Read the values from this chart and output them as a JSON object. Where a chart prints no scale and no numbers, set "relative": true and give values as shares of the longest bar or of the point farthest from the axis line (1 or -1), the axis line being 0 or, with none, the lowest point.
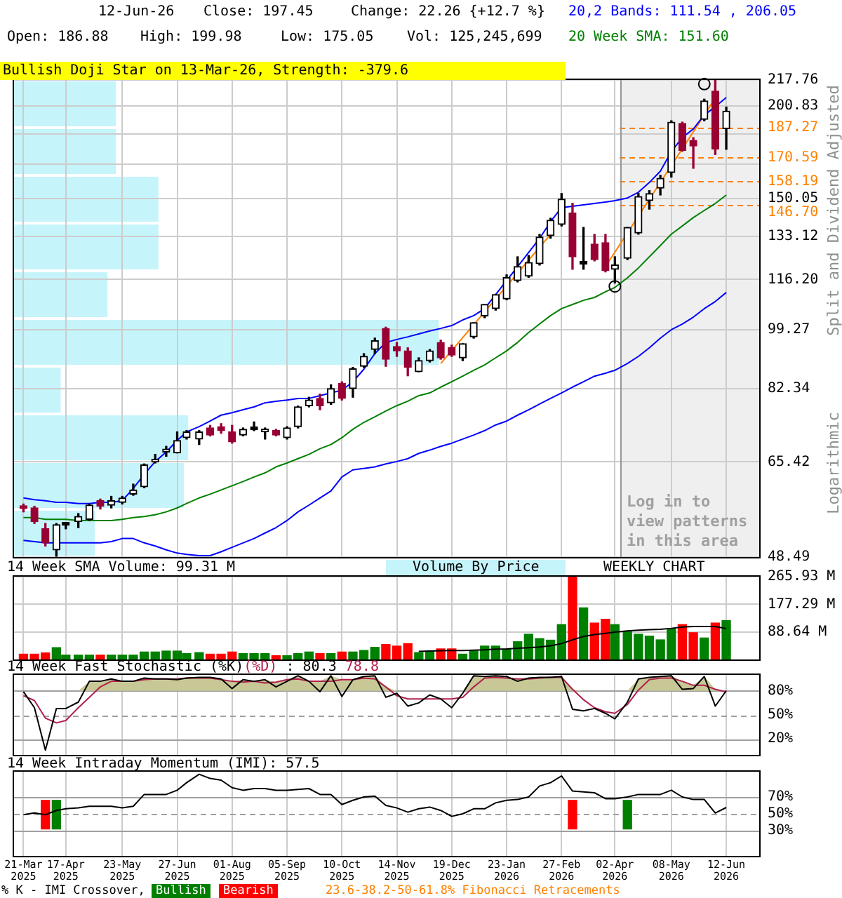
{
  "chart_data": [
    {
      "type": "candlestick",
      "annotations": [
        "12-Jun-26",
        "Close: 197.45",
        "Change: 22.26 {+12.7 %}",
        "Open: 186.88",
        "High: 199.98",
        "Low: 175.05",
        "Vol: 125,245,699",
        "Bullish Doji Star on 13-Mar-26, Strength: -379.6",
        "Logarithmic",
        "23.6-38.2-50-61.8% Fibonacci Retracements"
      ],
      "ylabel": "Split and Dividend Adjusted",
      "legend": "top right",
      "grid": true,
      "tick_labels": "y",
      "log": true,
      "x": [
        "2025-03-21",
        "2025-03-28",
        "2025-04-04",
        "2025-04-11",
        "2025-04-17",
        "2025-04-25",
        "2025-05-02",
        "2025-05-09",
        "2025-05-16",
        "2025-05-23",
        "2025-05-30",
        "2025-06-06",
        "2025-06-13",
        "2025-06-20",
        "2025-06-27",
        "2025-07-03",
        "2025-07-11",
        "2025-07-18",
        "2025-07-25",
        "2025-08-01",
        "2025-08-08",
        "2025-08-15",
        "2025-08-22",
        "2025-08-29",
        "2025-09-05",
        "2025-09-12",
        "2025-09-19",
        "2025-09-26",
        "2025-10-03",
        "2025-10-10",
        "2025-10-17",
        "2025-10-24",
        "2025-10-31",
        "2025-11-07",
        "2025-11-14",
        "2025-11-21",
        "2025-11-28",
        "2025-12-05",
        "2025-12-12",
        "2025-12-19",
        "2025-12-26",
        "2026-01-02",
        "2026-01-09",
        "2026-01-16",
        "2026-01-23",
        "2026-01-30",
        "2026-02-06",
        "2026-02-13",
        "2026-02-20",
        "2026-02-27",
        "2026-03-06",
        "2026-03-13",
        "2026-03-20",
        "2026-03-27",
        "2026-04-02",
        "2026-04-10",
        "2026-04-17",
        "2026-04-24",
        "2026-05-01",
        "2026-05-08",
        "2026-05-15",
        "2026-05-22",
        "2026-05-29",
        "2026-06-05",
        "2026-06-12"
      ],
      "ohlc": [
        [
          56.6,
          57.3,
          55.9,
          56.5
        ],
        [
          56.6,
          56.9,
          53.9,
          54.2
        ],
        [
          53.0,
          53.9,
          50.2,
          50.7
        ],
        [
          49.6,
          53.9,
          48.6,
          53.7
        ],
        [
          53.7,
          53.9,
          53.0,
          53.6
        ],
        [
          54.2,
          55.6,
          53.2,
          55.1
        ],
        [
          54.6,
          57.3,
          54.4,
          57.1
        ],
        [
          57.9,
          58.2,
          56.4,
          56.9
        ],
        [
          57.1,
          58.7,
          56.6,
          57.9
        ],
        [
          57.6,
          58.7,
          57.3,
          58.4
        ],
        [
          59.1,
          61.0,
          58.9,
          59.9
        ],
        [
          60.5,
          65.0,
          60.3,
          64.8
        ],
        [
          65.4,
          67.0,
          65.2,
          65.5
        ],
        [
          67.5,
          68.7,
          66.6,
          67.6
        ],
        [
          67.3,
          71.9,
          67.3,
          70.0
        ],
        [
          70.6,
          72.2,
          70.3,
          71.9
        ],
        [
          70.3,
          72.2,
          69.1,
          71.9
        ],
        [
          72.8,
          73.4,
          71.0,
          71.2
        ],
        [
          73.1,
          73.8,
          71.6,
          72.2
        ],
        [
          71.9,
          73.4,
          69.4,
          69.7
        ],
        [
          71.2,
          72.8,
          71.0,
          72.5
        ],
        [
          72.5,
          74.2,
          72.2,
          72.4
        ],
        [
          71.9,
          72.8,
          70.3,
          72.5
        ],
        [
          72.2,
          72.5,
          71.0,
          71.2
        ],
        [
          70.6,
          73.1,
          70.3,
          72.8
        ],
        [
          73.1,
          78.0,
          72.8,
          77.8
        ],
        [
          78.1,
          80.2,
          77.8,
          79.5
        ],
        [
          79.9,
          81.0,
          77.1,
          78.1
        ],
        [
          78.8,
          83.4,
          78.4,
          82.4
        ],
        [
          83.8,
          84.2,
          79.5,
          79.9
        ],
        [
          82.4,
          88.1,
          80.2,
          87.7
        ],
        [
          88.4,
          92.0,
          88.1,
          91.2
        ],
        [
          93.2,
          96.6,
          92.0,
          95.8
        ],
        [
          99.6,
          100.0,
          88.4,
          90.4
        ],
        [
          94.1,
          95.3,
          91.2,
          92.8
        ],
        [
          92.8,
          93.7,
          85.8,
          88.1
        ],
        [
          86.9,
          90.8,
          86.9,
          90.0
        ],
        [
          90.0,
          93.2,
          89.6,
          92.8
        ],
        [
          95.3,
          96.0,
          90.4,
          90.8
        ],
        [
          93.7,
          94.5,
          91.2,
          91.6
        ],
        [
          90.8,
          94.9,
          90.0,
          94.9
        ],
        [
          97.0,
          101.4,
          96.6,
          101.4
        ],
        [
          103.6,
          107.4,
          103.0,
          107.4
        ],
        [
          106.0,
          110.8,
          105.5,
          110.8
        ],
        [
          109.3,
          117.9,
          109.0,
          116.9
        ],
        [
          115.8,
          124.8,
          115.3,
          121.0
        ],
        [
          117.4,
          125.3,
          117.0,
          122.6
        ],
        [
          122.1,
          133.9,
          121.6,
          132.8
        ],
        [
          133.4,
          140.9,
          132.3,
          140.0
        ],
        [
          138.2,
          152.3,
          137.5,
          149.6
        ],
        [
          143.2,
          147.7,
          120.0,
          124.8
        ],
        [
          122.1,
          136.9,
          120.0,
          122.0
        ],
        [
          129.9,
          133.9,
          123.2,
          123.7
        ],
        [
          130.5,
          133.9,
          119.0,
          119.5
        ],
        [
          120.0,
          124.8,
          114.9,
          121.6
        ],
        [
          124.2,
          136.9,
          123.7,
          136.9
        ],
        [
          134.5,
          152.3,
          134.0,
          150.9
        ],
        [
          149.0,
          153.7,
          145.0,
          152.3
        ],
        [
          154.9,
          161.3,
          151.6,
          159.8
        ],
        [
          162.7,
          191.5,
          160.4,
          190.7
        ],
        [
          189.9,
          190.7,
          174.0,
          174.5
        ],
        [
          180.0,
          181.6,
          164.9,
          176.9
        ],
        [
          192.4,
          205.0,
          191.5,
          203.8
        ],
        [
          210.2,
          217.76,
          172.2,
          175.19
        ],
        [
          186.88,
          199.98,
          175.05,
          197.45
        ]
      ],
      "colors": [
        "#990033",
        "#990033",
        "#990033",
        "#000000",
        "#000000",
        "#000000",
        "#000000",
        "#990033",
        "#000000",
        "#000000",
        "#000000",
        "#000000",
        "#000000",
        "#000000",
        "#000000",
        "#000000",
        "#000000",
        "#990033",
        "#990033",
        "#990033",
        "#000000",
        "#000000",
        "#000000",
        "#990033",
        "#000000",
        "#000000",
        "#000000",
        "#990033",
        "#000000",
        "#990033",
        "#000000",
        "#000000",
        "#000000",
        "#990033",
        "#990033",
        "#990033",
        "#000000",
        "#000000",
        "#990033",
        "#990033",
        "#000000",
        "#000000",
        "#000000",
        "#000000",
        "#000000",
        "#000000",
        "#000000",
        "#000000",
        "#000000",
        "#000000",
        "#990033",
        "#000000",
        "#990033",
        "#990033",
        "#000000",
        "#000000",
        "#000000",
        "#000000",
        "#000000",
        "#000000",
        "#990033",
        "#990033",
        "#000000",
        "#990033",
        "#000000"
      ],
      "series": [
        {
          "name": "20,2 Bands: 111.54 , 206.05",
          "type": "line",
          "color": "#0000ff",
          "values": [
            58.4,
            58.1,
            57.9,
            57.6,
            57.6,
            57.4,
            57.4,
            57.6,
            57.6,
            57.9,
            60.2,
            62.9,
            65.5,
            67.5,
            70.0,
            71.9,
            73.1,
            74.4,
            75.8,
            76.4,
            77.1,
            77.8,
            78.8,
            79.2,
            79.5,
            79.9,
            79.9,
            80.6,
            81.3,
            82.0,
            84.2,
            87.6,
            92.0,
            95.3,
            96.2,
            97.0,
            97.9,
            98.8,
            99.6,
            100.5,
            102.3,
            103.7,
            106.0,
            110.8,
            115.8,
            121.0,
            126.5,
            132.2,
            139.4,
            145.7,
            146.3,
            147.0,
            147.6,
            148.3,
            148.9,
            150.2,
            152.9,
            157.7,
            163.4,
            173.8,
            181.7,
            186.6,
            195.0,
            200.2,
            206.05
          ]
        },
        {
          "type": "line",
          "color": "#0000ff",
          "values": [
            51.1,
            50.9,
            50.7,
            50.7,
            50.7,
            50.7,
            50.7,
            50.7,
            50.9,
            51.4,
            51.4,
            50.7,
            50.2,
            49.6,
            49.1,
            48.9,
            48.7,
            48.7,
            49.3,
            50.0,
            50.7,
            51.4,
            52.3,
            53.2,
            54.4,
            55.9,
            57.1,
            58.4,
            59.7,
            62.4,
            63.8,
            64.1,
            64.4,
            65.0,
            65.5,
            66.1,
            67.2,
            67.9,
            68.7,
            69.4,
            70.3,
            71.2,
            72.2,
            73.5,
            74.4,
            75.8,
            77.1,
            78.5,
            79.9,
            81.3,
            82.8,
            84.2,
            85.7,
            86.5,
            87.3,
            89.2,
            91.2,
            93.7,
            96.6,
            99.2,
            101.0,
            103.2,
            106.0,
            108.4,
            111.54
          ]
        },
        {
          "name": "20 Week SMA: 151.60",
          "type": "line",
          "color": "#008000",
          "values": [
            54.9,
            54.9,
            54.6,
            54.6,
            54.6,
            54.4,
            54.4,
            54.4,
            54.4,
            54.6,
            54.9,
            55.1,
            55.4,
            55.9,
            56.6,
            57.4,
            58.4,
            59.1,
            59.9,
            60.7,
            61.5,
            62.4,
            63.2,
            64.4,
            65.2,
            66.1,
            67.0,
            68.2,
            69.1,
            70.6,
            72.5,
            74.1,
            75.4,
            76.8,
            78.1,
            79.2,
            80.6,
            81.3,
            82.8,
            84.2,
            85.7,
            87.3,
            88.8,
            90.8,
            92.8,
            95.3,
            98.3,
            101.0,
            103.7,
            106.0,
            107.4,
            108.8,
            109.8,
            111.8,
            113.3,
            116.8,
            120.5,
            124.8,
            129.3,
            134.0,
            137.5,
            141.2,
            144.4,
            147.6,
            151.6
          ]
        },
        {
          "type": "line",
          "color": "#ff8000",
          "x": [
            "2025-12-12",
            "2026-02-20",
            "2026-03-20",
            "2026-03-27",
            "2026-06-05"
          ],
          "values": [
            89.2,
            133.9,
            null,
            121.0,
            205.6
          ]
        },
        {
          "type": "scatter",
          "color": "#000000",
          "marker": "circle",
          "x": [
            "2026-04-02",
            "2026-05-29"
          ],
          "values": [
            113.7,
            215
          ]
        }
      ],
      "ref_lines": [
        {
          "axis": "y",
          "value": 187.27,
          "label": "187.27",
          "color": "#ff8000",
          "line_style": "dashed"
        },
        {
          "axis": "y",
          "value": 170.59,
          "label": "170.59",
          "color": "#ff8000",
          "line_style": "dashed"
        },
        {
          "axis": "y",
          "value": 158.19,
          "label": "158.19",
          "color": "#ff8000",
          "line_style": "dashed"
        },
        {
          "axis": "y",
          "value": 146.7,
          "label": "146.70",
          "color": "#ff8000",
          "line_style": "dashed"
        },
        {
          "axis": "x",
          "value": "2026-04-05",
          "color": "#999999"
        }
      ],
      "bands": [
        {
          "axis": "x",
          "from": "2026-04-05",
          "to": "2026-07-03",
          "label": "Log in to view patterns in this area",
          "color": "#efefef"
        }
      ],
      "xlim": [
        "2025-03-15",
        "2026-07-03"
      ],
      "xticks": [
        {
          "value": "2025-03-21",
          "label": null
        },
        {
          "value": "2025-04-17",
          "label": null
        },
        {
          "value": "2025-05-23",
          "label": null
        },
        {
          "value": "2025-06-27",
          "label": null
        },
        {
          "value": "2025-08-01",
          "label": null
        },
        {
          "value": "2025-09-05",
          "label": null
        },
        {
          "value": "2025-10-10",
          "label": null
        },
        {
          "value": "2025-11-14",
          "label": null
        },
        {
          "value": "2025-12-19",
          "label": null
        },
        {
          "value": "2026-01-23",
          "label": null
        },
        {
          "value": "2026-02-27",
          "label": null
        },
        {
          "value": "2026-04-02",
          "label": null
        },
        {
          "value": "2026-05-08",
          "label": null
        },
        {
          "value": "2026-06-12",
          "label": null
        }
      ],
      "ylim": [
        48.49,
        217.76
      ],
      "yticks": [
        48.49,
        65.42,
        82.34,
        99.27,
        {
          "value": 116.2,
          "label": "116.20"
        },
        133.12,
        150.05,
        {
          "value": 166.98,
          "label": null
        },
        {
          "value": 183.9,
          "label": null
        },
        200.83,
        217.76
      ]
    },
    {
      "type": "bar",
      "orientation": "horizontal",
      "relative": true,
      "legend": "bottom",
      "tick_labels": false,
      "categories": [
        null,
        null,
        null,
        null,
        null,
        null,
        null,
        null,
        null,
        null
      ],
      "series": [
        {
          "name": "Volume By Price",
          "color": "#c6f4fb",
          "values": [
            0.24,
            0.24,
            0.34,
            0.34,
            0.22,
            1,
            0.11,
            0.41,
            0.4,
            0.19
          ]
        }
      ]
    },
    {
      "type": "bar",
      "title": "14 Week SMA Volume: 99.31 M",
      "annotations": [
        "WEEKLY CHART"
      ],
      "grid": true,
      "tick_labels": "y",
      "x": [
        "2025-03-21",
        "2025-03-28",
        "2025-04-04",
        "2025-04-11",
        "2025-04-17",
        "2025-04-25",
        "2025-05-02",
        "2025-05-09",
        "2025-05-16",
        "2025-05-23",
        "2025-05-30",
        "2025-06-06",
        "2025-06-13",
        "2025-06-20",
        "2025-06-27",
        "2025-07-03",
        "2025-07-11",
        "2025-07-18",
        "2025-07-25",
        "2025-08-01",
        "2025-08-08",
        "2025-08-15",
        "2025-08-22",
        "2025-08-29",
        "2025-09-05",
        "2025-09-12",
        "2025-09-19",
        "2025-09-26",
        "2025-10-03",
        "2025-10-10",
        "2025-10-17",
        "2025-10-24",
        "2025-10-31",
        "2025-11-07",
        "2025-11-14",
        "2025-11-21",
        "2025-11-28",
        "2025-12-05",
        "2025-12-12",
        "2025-12-19",
        "2025-12-26",
        "2026-01-02",
        "2026-01-09",
        "2026-01-16",
        "2026-01-23",
        "2026-01-30",
        "2026-02-06",
        "2026-02-13",
        "2026-02-20",
        "2026-02-27",
        "2026-03-06",
        "2026-03-13",
        "2026-03-20",
        "2026-03-27",
        "2026-04-02",
        "2026-04-10",
        "2026-04-17",
        "2026-04-24",
        "2026-05-01",
        "2026-05-08",
        "2026-05-15",
        "2026-05-22",
        "2026-05-29",
        "2026-06-05",
        "2026-06-12"
      ],
      "values": [
        17,
        17,
        21,
        38,
        14,
        14,
        14,
        14,
        14,
        14,
        14,
        24,
        24,
        27,
        27,
        19,
        22,
        17,
        17,
        24,
        19,
        19,
        19,
        12,
        12,
        19,
        24,
        19,
        19,
        24,
        24,
        29,
        39,
        48,
        43,
        51,
        22,
        27,
        34,
        34,
        17,
        27,
        43,
        43,
        33,
        57,
        81,
        67,
        62,
        112,
        265,
        166,
        117,
        129,
        112,
        89,
        81,
        75,
        63,
        98,
        112,
        86,
        69,
        117,
        125
      ],
      "colors": [
        "#ff0000",
        "#ff0000",
        "#ff0000",
        "#008000",
        "#008000",
        "#008000",
        "#008000",
        "#ff0000",
        "#008000",
        "#008000",
        "#008000",
        "#008000",
        "#008000",
        "#008000",
        "#008000",
        "#008000",
        "#008000",
        "#ff0000",
        "#ff0000",
        "#ff0000",
        "#008000",
        "#008000",
        "#008000",
        "#ff0000",
        "#008000",
        "#008000",
        "#008000",
        "#ff0000",
        "#008000",
        "#ff0000",
        "#008000",
        "#008000",
        "#008000",
        "#ff0000",
        "#ff0000",
        "#ff0000",
        "#008000",
        "#008000",
        "#ff0000",
        "#ff0000",
        "#008000",
        "#008000",
        "#008000",
        "#008000",
        "#008000",
        "#008000",
        "#008000",
        "#008000",
        "#008000",
        "#008000",
        "#ff0000",
        "#008000",
        "#ff0000",
        "#ff0000",
        "#008000",
        "#008000",
        "#008000",
        "#008000",
        "#008000",
        "#008000",
        "#ff0000",
        "#ff0000",
        "#008000",
        "#ff0000",
        "#008000"
      ],
      "series": [
        {
          "type": "line",
          "color": "#000000",
          "values": [
            null,
            null,
            null,
            null,
            null,
            null,
            null,
            null,
            null,
            null,
            null,
            null,
            null,
            null,
            null,
            null,
            null,
            null,
            null,
            null,
            null,
            null,
            null,
            null,
            null,
            null,
            null,
            null,
            null,
            null,
            null,
            null,
            null,
            null,
            null,
            null,
            26,
            27,
            28,
            29,
            29,
            30,
            31,
            33,
            34,
            36,
            38,
            40,
            44,
            51,
            63,
            74,
            80,
            84,
            88,
            92,
            94,
            96,
            97,
            100,
            104,
            106,
            106,
            106,
            99.31
          ]
        }
      ],
      "xlim": [
        "2025-03-15",
        "2026-07-03"
      ],
      "xticks": [
        {
          "value": "2025-03-21",
          "label": null
        },
        {
          "value": "2025-04-17",
          "label": null
        },
        {
          "value": "2025-05-23",
          "label": null
        },
        {
          "value": "2025-06-27",
          "label": null
        },
        {
          "value": "2025-08-01",
          "label": null
        },
        {
          "value": "2025-09-05",
          "label": null
        },
        {
          "value": "2025-10-10",
          "label": null
        },
        {
          "value": "2025-11-14",
          "label": null
        },
        {
          "value": "2025-12-19",
          "label": null
        },
        {
          "value": "2026-01-23",
          "label": null
        },
        {
          "value": "2026-02-27",
          "label": null
        },
        {
          "value": "2026-04-02",
          "label": null
        },
        {
          "value": "2026-05-08",
          "label": null
        },
        {
          "value": "2026-06-12",
          "label": null
        }
      ],
      "ylim": [
        0,
        265.93
      ],
      "yticks": [
        {
          "value": 88.64,
          "label": "88.64 M"
        },
        {
          "value": 177.29,
          "label": "177.29 M"
        },
        {
          "value": 265.93,
          "label": "265.93 M"
        }
      ]
    },
    {
      "type": "line",
      "title": "14 Week Fast Stochastic",
      "annotations": [
        ": 80.3",
        "78.8"
      ],
      "legend": "top left",
      "grid": "x",
      "tick_labels": "y",
      "x": [
        "2025-03-21",
        "2025-03-28",
        "2025-04-04",
        "2025-04-11",
        "2025-04-17",
        "2025-04-25",
        "2025-05-02",
        "2025-05-09",
        "2025-05-16",
        "2025-05-23",
        "2025-05-30",
        "2025-06-06",
        "2025-06-13",
        "2025-06-20",
        "2025-06-27",
        "2025-07-03",
        "2025-07-11",
        "2025-07-18",
        "2025-07-25",
        "2025-08-01",
        "2025-08-08",
        "2025-08-15",
        "2025-08-22",
        "2025-08-29",
        "2025-09-05",
        "2025-09-12",
        "2025-09-19",
        "2025-09-26",
        "2025-10-03",
        "2025-10-10",
        "2025-10-17",
        "2025-10-24",
        "2025-10-31",
        "2025-11-07",
        "2025-11-14",
        "2025-11-21",
        "2025-11-28",
        "2025-12-05",
        "2025-12-12",
        "2025-12-19",
        "2025-12-26",
        "2026-01-02",
        "2026-01-09",
        "2026-01-16",
        "2026-01-23",
        "2026-01-30",
        "2026-02-06",
        "2026-02-13",
        "2026-02-20",
        "2026-02-27",
        "2026-03-06",
        "2026-03-13",
        "2026-03-20",
        "2026-03-27",
        "2026-04-02",
        "2026-04-10",
        "2026-04-17",
        "2026-04-24",
        "2026-05-01",
        "2026-05-08",
        "2026-05-15",
        "2026-05-22",
        "2026-05-29",
        "2026-06-05",
        "2026-06-12"
      ],
      "series": [
        {
          "name": "(%K)",
          "color": "#000000",
          "values": [
            79,
            59,
            6,
            58,
            58,
            66,
            92,
            92,
            95,
            92,
            92,
            96,
            95,
            95,
            94,
            96,
            97,
            97,
            95,
            83,
            94,
            92,
            94,
            85,
            92,
            99,
            92,
            79,
            99,
            73,
            94,
            98,
            99,
            72,
            77,
            61,
            65,
            75,
            70,
            59,
            77,
            99,
            98,
            99,
            98,
            92,
            96,
            97,
            97,
            98,
            57,
            55,
            58,
            52,
            45,
            66,
            95,
            97,
            98,
            99,
            82,
            83,
            98,
            61,
            80.3
          ]
        },
        {
          "name": "(%D)",
          "color": "#b0204a",
          "values": [
            74,
            68,
            46,
            40,
            43,
            59,
            72,
            85,
            92,
            92,
            92,
            94,
            95,
            95,
            95,
            96,
            96,
            96,
            94,
            92,
            91,
            92,
            90,
            91,
            94,
            95,
            92,
            92,
            92,
            94,
            94,
            96,
            95,
            85,
            74,
            70,
            70,
            70,
            70,
            70,
            72,
            85,
            96,
            97,
            96,
            95,
            95,
            96,
            97,
            97,
            82,
            69,
            59,
            54,
            52,
            63,
            81,
            94,
            96,
            96,
            92,
            87,
            87,
            82,
            78.8
          ]
        },
        {
          "type": "area",
          "color": "#c8c896",
          "values": [
            80,
            80,
            80,
            80,
            80,
            80,
            92,
            92,
            95,
            92,
            92,
            96,
            95,
            95,
            95,
            96,
            97,
            97,
            95,
            92,
            94,
            92,
            94,
            91,
            94,
            99,
            92,
            92,
            99,
            94,
            94,
            98,
            99,
            85,
            80,
            80,
            80,
            80,
            80,
            80,
            80,
            99,
            98,
            99,
            98,
            95,
            96,
            97,
            97,
            98,
            82,
            80,
            80,
            80,
            80,
            80,
            95,
            97,
            98,
            99,
            92,
            87,
            98,
            82,
            80.3
          ]
        }
      ],
      "ref_lines": [
        {
          "axis": "y",
          "value": 80,
          "color": "#a0a0a0"
        },
        {
          "axis": "y",
          "value": 50,
          "color": "#a0a0a0",
          "line_style": "dashed"
        },
        {
          "axis": "y",
          "value": 20,
          "color": "#a0a0a0"
        }
      ],
      "xlim": [
        "2025-03-15",
        "2026-07-03"
      ],
      "xticks": [
        {
          "value": "2025-03-21",
          "label": null
        },
        {
          "value": "2025-04-17",
          "label": null
        },
        {
          "value": "2025-05-23",
          "label": null
        },
        {
          "value": "2025-06-27",
          "label": null
        },
        {
          "value": "2025-08-01",
          "label": null
        },
        {
          "value": "2025-09-05",
          "label": null
        },
        {
          "value": "2025-10-10",
          "label": null
        },
        {
          "value": "2025-11-14",
          "label": null
        },
        {
          "value": "2025-12-19",
          "label": null
        },
        {
          "value": "2026-01-23",
          "label": null
        },
        {
          "value": "2026-02-27",
          "label": null
        },
        {
          "value": "2026-04-02",
          "label": null
        },
        {
          "value": "2026-05-08",
          "label": null
        },
        {
          "value": "2026-06-12",
          "label": null
        }
      ],
      "ylim": [
        0,
        100
      ],
      "yticks": [
        {
          "value": 20,
          "label": "20%"
        },
        {
          "value": 50,
          "label": "50%"
        },
        {
          "value": 80,
          "label": "80%"
        }
      ]
    },
    {
      "type": "line",
      "title": "14 Week Intraday Momentum (IMI): 57.5",
      "legend": "bottom",
      "legend_title": "% K - IMI Crossover,",
      "grid": "x",
      "x": [
        "2025-03-21",
        "2025-03-28",
        "2025-04-04",
        "2025-04-11",
        "2025-04-17",
        "2025-04-25",
        "2025-05-02",
        "2025-05-09",
        "2025-05-16",
        "2025-05-23",
        "2025-05-30",
        "2025-06-06",
        "2025-06-13",
        "2025-06-20",
        "2025-06-27",
        "2025-07-03",
        "2025-07-11",
        "2025-07-18",
        "2025-07-25",
        "2025-08-01",
        "2025-08-08",
        "2025-08-15",
        "2025-08-22",
        "2025-08-29",
        "2025-09-05",
        "2025-09-12",
        "2025-09-19",
        "2025-09-26",
        "2025-10-03",
        "2025-10-10",
        "2025-10-17",
        "2025-10-24",
        "2025-10-31",
        "2025-11-07",
        "2025-11-14",
        "2025-11-21",
        "2025-11-28",
        "2025-12-05",
        "2025-12-12",
        "2025-12-19",
        "2025-12-26",
        "2026-01-02",
        "2026-01-09",
        "2026-01-16",
        "2026-01-23",
        "2026-01-30",
        "2026-02-06",
        "2026-02-13",
        "2026-02-20",
        "2026-02-27",
        "2026-03-06",
        "2026-03-13",
        "2026-03-20",
        "2026-03-27",
        "2026-04-02",
        "2026-04-10",
        "2026-04-17",
        "2026-04-24",
        "2026-05-01",
        "2026-05-08",
        "2026-05-15",
        "2026-05-22",
        "2026-05-29",
        "2026-06-05",
        "2026-06-12"
      ],
      "series": [
        {
          "color": "#000000",
          "values": [
            49,
            51,
            49,
            54,
            56,
            57,
            59,
            59,
            59,
            57,
            59,
            73,
            73,
            73,
            78,
            87,
            97,
            92,
            90,
            81,
            78,
            80,
            80,
            78,
            78,
            79,
            80,
            73,
            73,
            61,
            66,
            70,
            71,
            60,
            57,
            52,
            56,
            58,
            54,
            47,
            50,
            56,
            56,
            63,
            66,
            67,
            70,
            83,
            87,
            95,
            77,
            76,
            75,
            68,
            68,
            70,
            73,
            73,
            73,
            78,
            70,
            67,
            67,
            51,
            57.5
          ]
        },
        {
          "name": "Bullish",
          "type": "bar",
          "color": "#008000",
          "x": [
            "2025-04-11",
            "2026-04-10"
          ],
          "values": [
            34,
            34
          ],
          "base": [
            32,
            32
          ]
        },
        {
          "name": "Bearish",
          "type": "bar",
          "color": "#ff0000",
          "x": [
            "2025-04-04",
            "2026-03-06"
          ],
          "values": [
            34,
            34
          ],
          "base": [
            32,
            32
          ]
        }
      ],
      "ref_lines": [
        {
          "axis": "y",
          "value": 70,
          "color": "#a0a0a0"
        },
        {
          "axis": "y",
          "value": 50,
          "color": "#a0a0a0",
          "line_style": "dashed"
        },
        {
          "axis": "y",
          "value": 30,
          "color": "#a0a0a0"
        }
      ],
      "xlim": [
        "2025-03-15",
        "2026-07-03"
      ],
      "xticks": [
        {
          "value": "2025-03-21",
          "label": "21-Mar 2025"
        },
        {
          "value": "2025-04-17",
          "label": "17-Apr 2025"
        },
        {
          "value": "2025-05-23",
          "label": "23-May 2025"
        },
        {
          "value": "2025-06-27",
          "label": "27-Jun 2025"
        },
        {
          "value": "2025-08-01",
          "label": "01-Aug 2025"
        },
        {
          "value": "2025-09-05",
          "label": "05-Sep 2025"
        },
        {
          "value": "2025-10-10",
          "label": "10-Oct 2025"
        },
        {
          "value": "2025-11-14",
          "label": "14-Nov 2025"
        },
        {
          "value": "2025-12-19",
          "label": "19-Dec 2025"
        },
        {
          "value": "2026-01-23",
          "label": "23-Jan 2026"
        },
        {
          "value": "2026-02-27",
          "label": "27-Feb 2026"
        },
        {
          "value": "2026-04-02",
          "label": "02-Apr 2026"
        },
        {
          "value": "2026-05-08",
          "label": "08-May 2026"
        },
        {
          "value": "2026-06-12",
          "label": "12-Jun 2026"
        }
      ],
      "ylim": [
        0,
        100
      ],
      "yticks": [
        {
          "value": 30,
          "label": "30%"
        },
        {
          "value": 50,
          "label": "50%"
        },
        {
          "value": 70,
          "label": "70%"
        }
      ]
    }
  ]
}
